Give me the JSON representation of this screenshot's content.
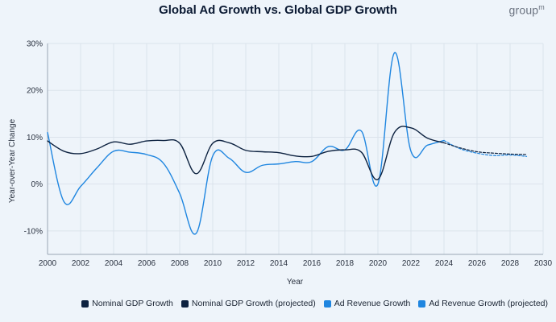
{
  "header": {
    "title": "Global Ad Growth vs. Global GDP Growth",
    "brand": "group",
    "brand_sup": "m"
  },
  "chart_data": {
    "type": "line",
    "title": "Global Ad Growth vs. Global GDP Growth",
    "xlabel": "Year",
    "ylabel": "Year-over-Year Change",
    "xlim": [
      2000,
      2030
    ],
    "ylim": [
      -15,
      30
    ],
    "x_ticks": [
      2000,
      2002,
      2004,
      2006,
      2008,
      2010,
      2012,
      2014,
      2016,
      2018,
      2020,
      2022,
      2024,
      2026,
      2028,
      2030
    ],
    "y_ticks": [
      -10,
      0,
      10,
      20,
      30
    ],
    "y_tick_labels": [
      "-10%",
      "0%",
      "10%",
      "20%",
      "30%"
    ],
    "series": [
      {
        "name": "Nominal GDP Growth",
        "color": "#0d2240",
        "dashed": false,
        "x": [
          2000,
          2001,
          2002,
          2003,
          2004,
          2005,
          2006,
          2007,
          2008,
          2009,
          2010,
          2011,
          2012,
          2013,
          2014,
          2015,
          2016,
          2017,
          2018,
          2019,
          2020,
          2021,
          2022,
          2023,
          2024
        ],
        "values": [
          9.2,
          7.0,
          6.5,
          7.5,
          9.0,
          8.5,
          9.2,
          9.3,
          8.7,
          2.2,
          8.7,
          8.8,
          7.2,
          6.9,
          6.7,
          6.0,
          5.9,
          7.0,
          7.3,
          6.8,
          1.0,
          11.0,
          12.0,
          9.8,
          8.8
        ]
      },
      {
        "name": "Nominal GDP Growth (projected)",
        "color": "#0d2240",
        "dashed": true,
        "x": [
          2024,
          2025,
          2026,
          2027,
          2028,
          2029
        ],
        "values": [
          8.8,
          7.7,
          6.9,
          6.6,
          6.4,
          6.3
        ]
      },
      {
        "name": "Ad Revenue Growth",
        "color": "#1f86e0",
        "dashed": false,
        "x": [
          2000,
          2001,
          2002,
          2003,
          2004,
          2005,
          2006,
          2007,
          2008,
          2009,
          2010,
          2011,
          2012,
          2013,
          2014,
          2015,
          2016,
          2017,
          2018,
          2019,
          2020,
          2021,
          2022,
          2023,
          2024
        ],
        "values": [
          11.0,
          -3.8,
          -0.5,
          3.5,
          7.0,
          6.8,
          6.3,
          4.5,
          -2.0,
          -10.5,
          6.0,
          5.5,
          2.5,
          4.0,
          4.3,
          4.8,
          4.8,
          8.0,
          7.3,
          11.3,
          0.0,
          28.0,
          7.0,
          8.3,
          9.3
        ]
      },
      {
        "name": "Ad Revenue Growth (projected)",
        "color": "#1f86e0",
        "dashed": true,
        "x": [
          2024,
          2025,
          2026,
          2027,
          2028,
          2029
        ],
        "values": [
          9.3,
          7.5,
          6.6,
          6.1,
          6.2,
          5.9
        ]
      }
    ],
    "legend": [
      "Nominal GDP Growth",
      "Nominal GDP Growth (projected)",
      "Ad Revenue Growth",
      "Ad Revenue Growth (projected)"
    ],
    "legend_position": "bottom-right",
    "grid": true
  }
}
